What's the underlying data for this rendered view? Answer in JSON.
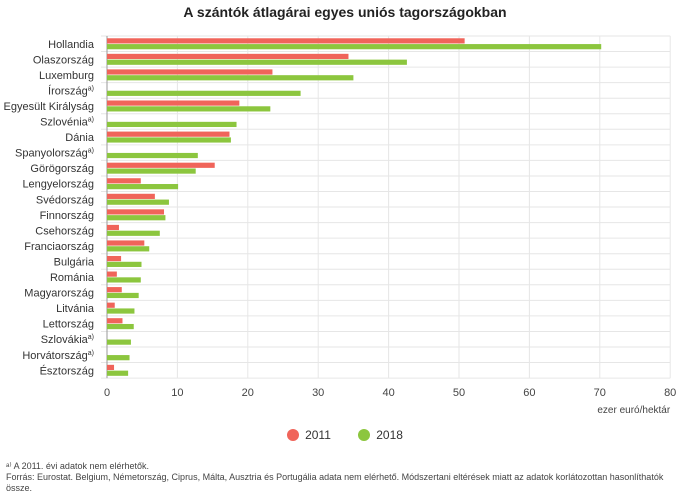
{
  "chart_data": {
    "type": "bar",
    "orientation": "horizontal",
    "title": "A szántók átlagárai egyes uniós tagországokban",
    "xlabel": "ezer euró/hektár",
    "xlim": [
      0,
      80
    ],
    "xticks": [
      0,
      10,
      20,
      30,
      40,
      50,
      60,
      70,
      80
    ],
    "grid": true,
    "legend_position": "bottom",
    "categories": [
      {
        "name": "Hollandia",
        "note": ""
      },
      {
        "name": "Olaszország",
        "note": ""
      },
      {
        "name": "Luxemburg",
        "note": ""
      },
      {
        "name": "Írország",
        "note": "a)"
      },
      {
        "name": "Egyesült Királyság",
        "note": ""
      },
      {
        "name": "Szlovénia",
        "note": "a)"
      },
      {
        "name": "Dánia",
        "note": ""
      },
      {
        "name": "Spanyolország",
        "note": "a)"
      },
      {
        "name": "Görögország",
        "note": ""
      },
      {
        "name": "Lengyelország",
        "note": ""
      },
      {
        "name": "Svédország",
        "note": ""
      },
      {
        "name": "Finnország",
        "note": ""
      },
      {
        "name": "Csehország",
        "note": ""
      },
      {
        "name": "Franciaország",
        "note": ""
      },
      {
        "name": "Bulgária",
        "note": ""
      },
      {
        "name": "Románia",
        "note": ""
      },
      {
        "name": "Magyarország",
        "note": ""
      },
      {
        "name": "Litvánia",
        "note": ""
      },
      {
        "name": "Lettország",
        "note": ""
      },
      {
        "name": "Szlovákia",
        "note": "a)"
      },
      {
        "name": "Horvátország",
        "note": "a)"
      },
      {
        "name": "Észtország",
        "note": ""
      }
    ],
    "series": [
      {
        "name": "2011",
        "color": "#f0645a",
        "values": [
          50.8,
          34.3,
          23.5,
          null,
          18.8,
          null,
          17.4,
          null,
          15.3,
          4.8,
          6.8,
          8.1,
          1.7,
          5.3,
          2.0,
          1.4,
          2.1,
          1.1,
          2.2,
          null,
          null,
          1.0
        ]
      },
      {
        "name": "2018",
        "color": "#8cc63e",
        "values": [
          70.2,
          42.6,
          35.0,
          27.5,
          23.2,
          18.4,
          17.6,
          12.9,
          12.6,
          10.1,
          8.8,
          8.3,
          7.5,
          6.0,
          4.9,
          4.8,
          4.5,
          3.9,
          3.8,
          3.4,
          3.2,
          3.0
        ]
      }
    ]
  },
  "footnotes": {
    "note_a": "ᵃ⁾ A 2011. évi adatok nem elérhetők.",
    "source": "Forrás: Eurostat. Belgium, Németország, Ciprus, Málta, Ausztria és Portugália adata nem elérhető. Módszertani eltérések miatt az adatok korlátozottan hasonlíthatók",
    "source_cont": "össze."
  }
}
